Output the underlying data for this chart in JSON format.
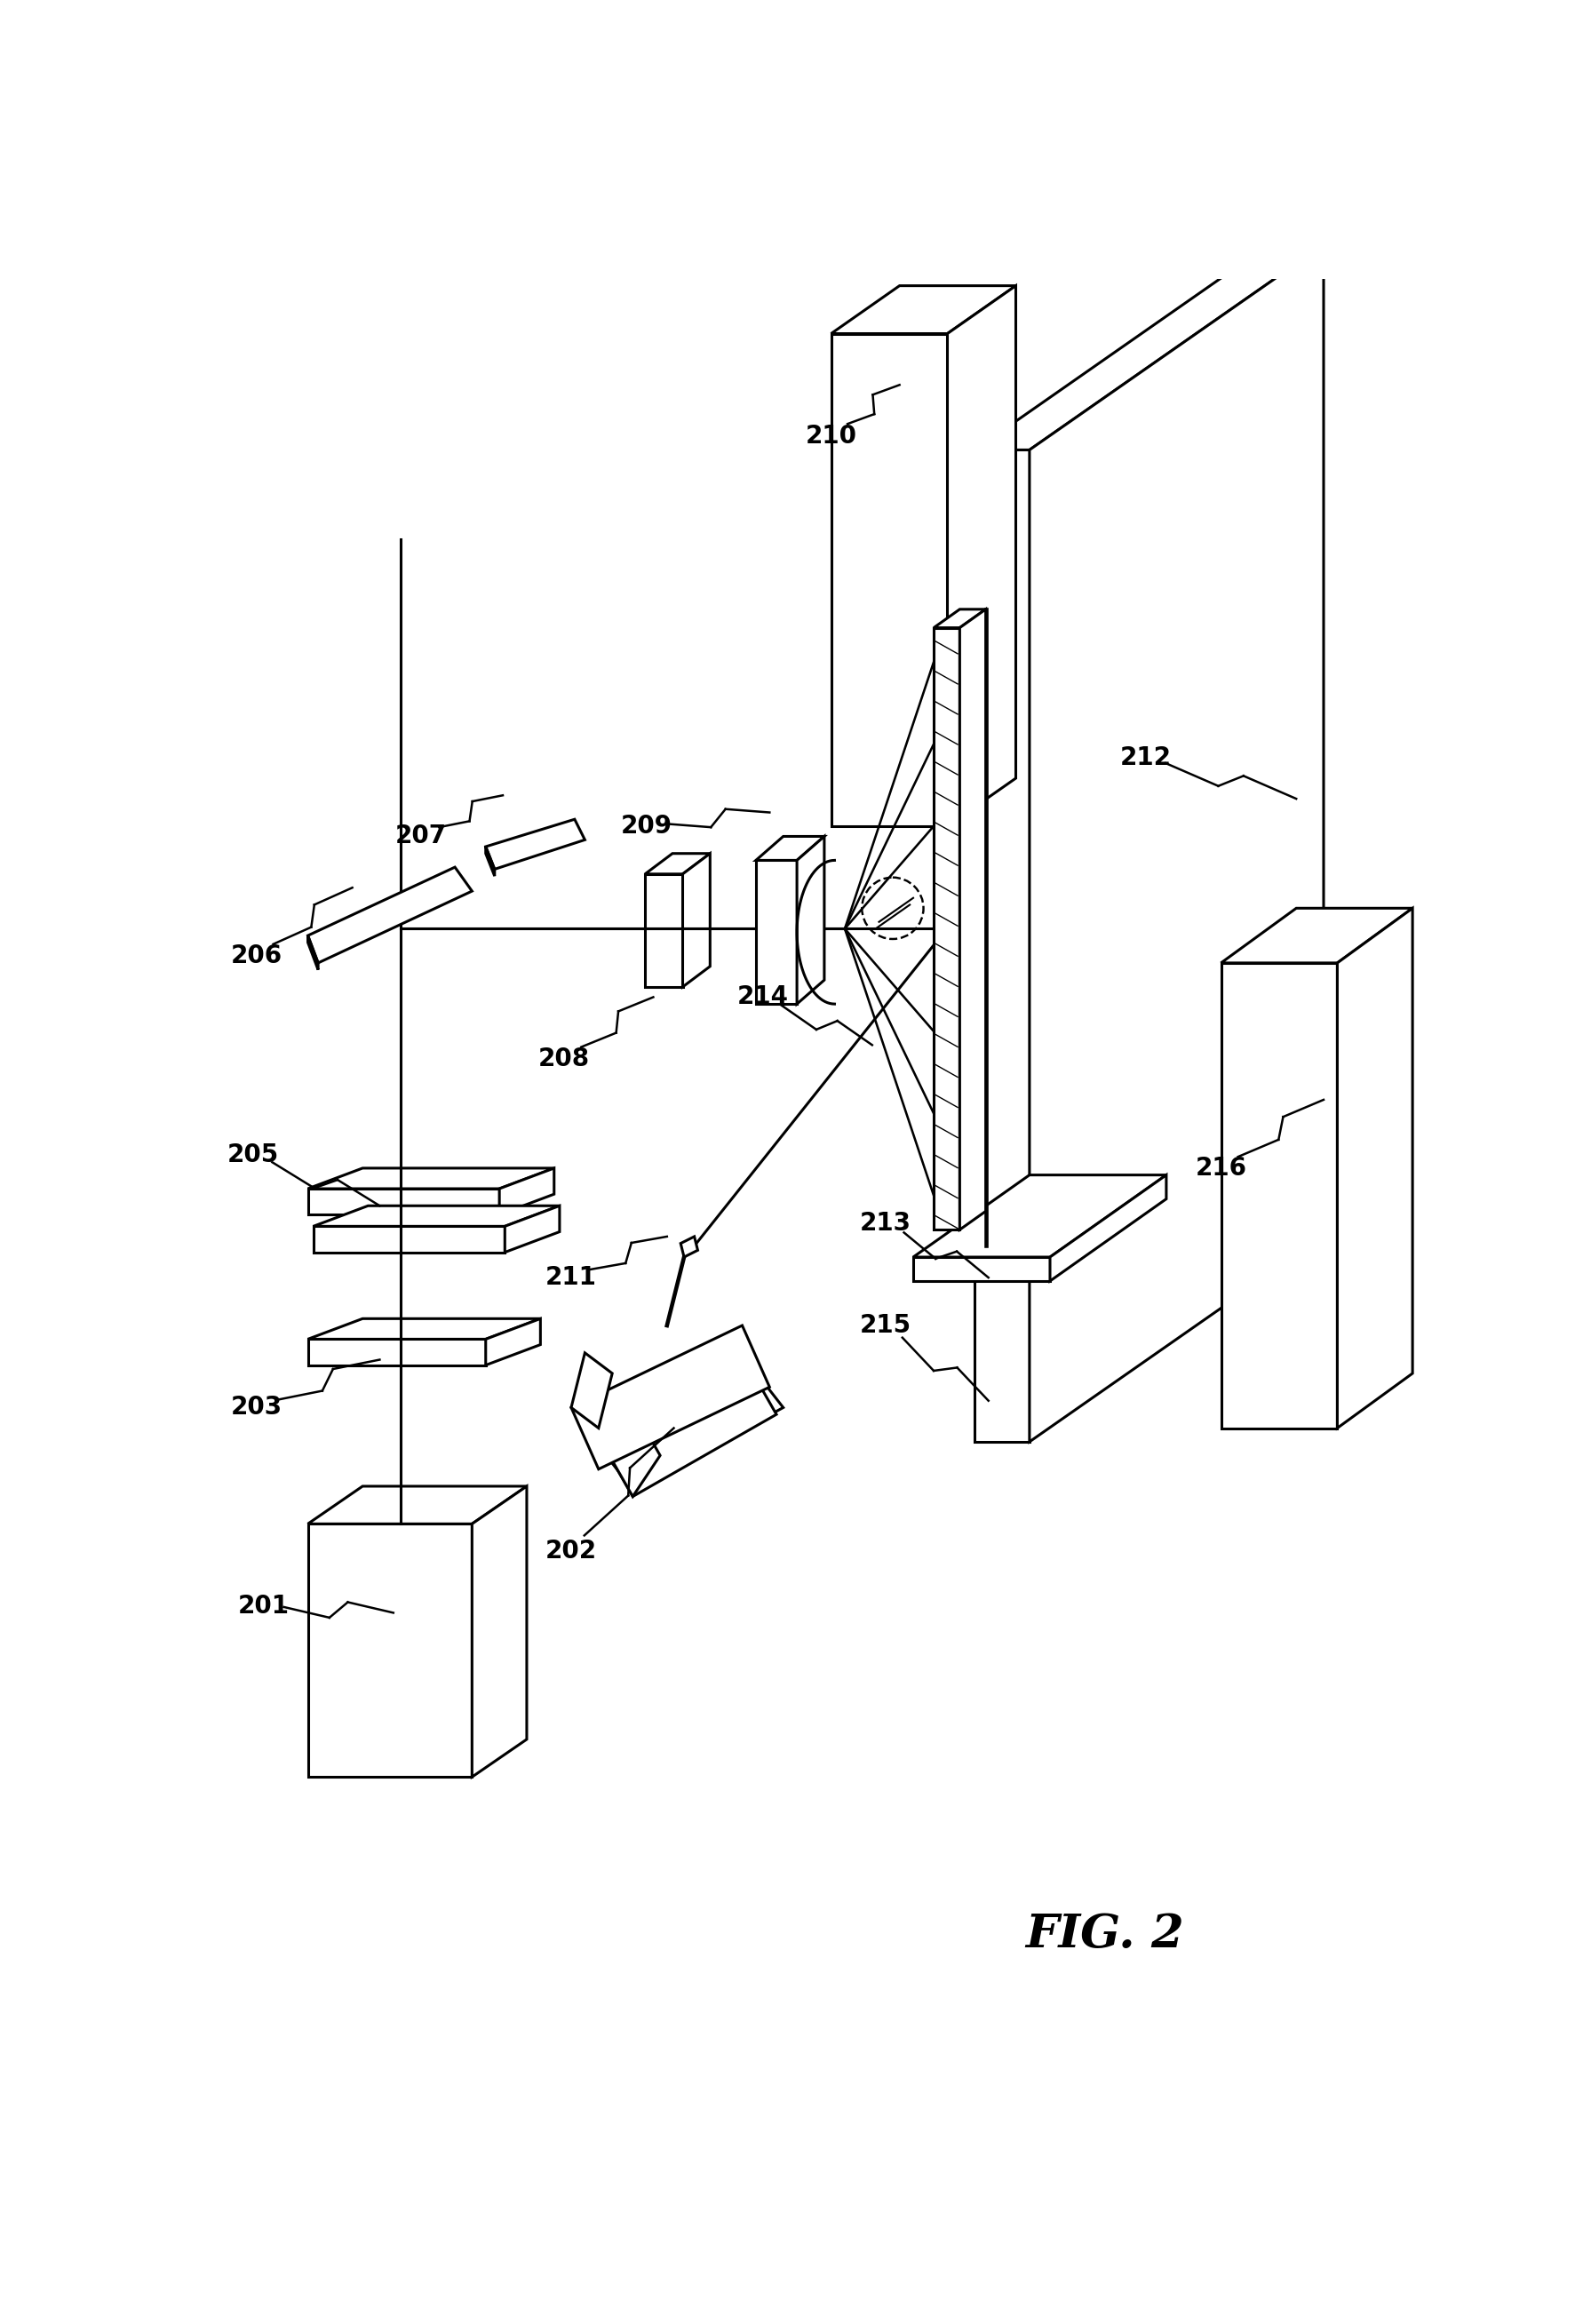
{
  "background_color": "#ffffff",
  "line_color": "#000000",
  "fig_label": "FIG. 2",
  "lw": 2.2,
  "label_fs": 20
}
